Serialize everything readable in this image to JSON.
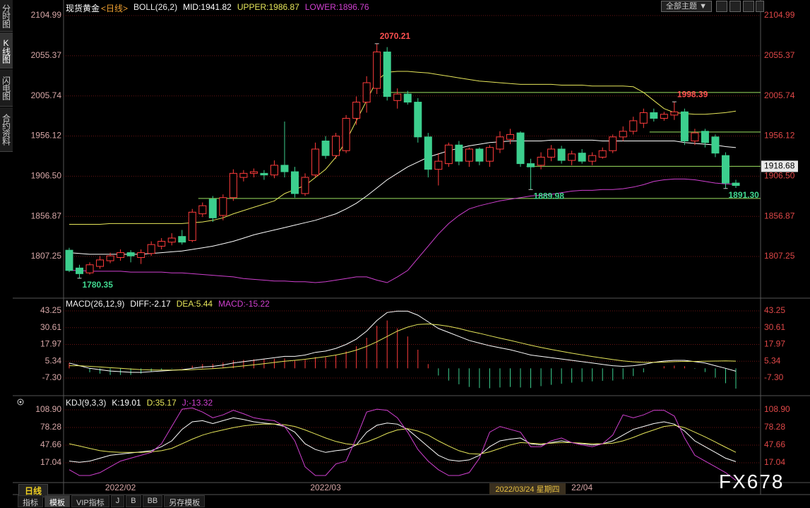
{
  "sidebar": [
    "分时图",
    "K线图",
    "闪电图",
    "合约资料"
  ],
  "toolbar": {
    "dropdown": "全部主题"
  },
  "period_label": "日线",
  "cursor_label": "2022/03/24 星期四",
  "tabs": [
    "指标",
    "模板",
    "VIP指标",
    "J",
    "B",
    "BB",
    "另存模板"
  ],
  "watermark": "FX678",
  "chart_data": [
    {
      "type": "candlestick",
      "title": "现货黄金",
      "period": "<日线>",
      "indicator": "BOLL(26,2)",
      "categories": [
        null,
        null,
        null,
        null,
        null,
        "2022/02",
        null,
        null,
        null,
        null,
        null,
        null,
        null,
        null,
        null,
        null,
        null,
        null,
        null,
        null,
        null,
        null,
        null,
        null,
        null,
        "2022/03",
        null,
        null,
        null,
        null,
        null,
        null,
        null,
        null,
        null,
        null,
        null,
        null,
        null,
        null,
        null,
        null,
        null,
        null,
        null,
        null,
        null,
        null,
        null,
        null,
        "22/04",
        null,
        null,
        null,
        null,
        null,
        null,
        null,
        null,
        null,
        null,
        null,
        null,
        null,
        null,
        null
      ],
      "open": [
        1815,
        1793,
        1787,
        1795,
        1802,
        1806,
        1812,
        1806,
        1811,
        1820,
        1825,
        1832,
        1827,
        1860,
        1878,
        1858,
        1880,
        1905,
        1910,
        1910,
        1908,
        1920,
        1912,
        1885,
        1908,
        1950,
        1932,
        1938,
        1978,
        1998,
        2015,
        2060,
        2000,
        2008,
        1998,
        1955,
        1915,
        1922,
        1945,
        1925,
        1940,
        1925,
        1940,
        1952,
        1960,
        1922,
        1920,
        1930,
        1940,
        1926,
        1935,
        1925,
        1930,
        1938,
        1955,
        1962,
        1972,
        1985,
        1978,
        1982,
        1986,
        1950,
        1962,
        1955,
        1932,
        1898
      ],
      "high": [
        1818,
        1797,
        1800,
        1808,
        1812,
        1816,
        1815,
        1816,
        1826,
        1830,
        1836,
        1840,
        1866,
        1874,
        1882,
        1884,
        1915,
        1914,
        1916,
        1914,
        1926,
        1974,
        1918,
        1910,
        1948,
        1956,
        1960,
        1982,
        2005,
        2030,
        2070.21,
        2066,
        2015,
        2012,
        2003,
        1960,
        1935,
        1948,
        1950,
        1942,
        1942,
        1945,
        1962,
        1965,
        1962,
        1928,
        1936,
        1945,
        1944,
        1938,
        1940,
        1936,
        1942,
        1958,
        1968,
        1980,
        1990,
        1990,
        1986,
        1998.39,
        1990,
        1965,
        1965,
        1958,
        1936,
        1902
      ],
      "low": [
        1788,
        1780.35,
        1785,
        1792,
        1799,
        1802,
        1800,
        1798,
        1808,
        1816,
        1821,
        1822,
        1825,
        1856,
        1850,
        1852,
        1876,
        1900,
        1905,
        1902,
        1904,
        1905,
        1880,
        1882,
        1905,
        1928,
        1928,
        1935,
        1970,
        1985,
        2008,
        2000,
        1990,
        1995,
        1948,
        1905,
        1895,
        1918,
        1920,
        1918,
        1920,
        1918,
        1935,
        1946,
        1918,
        1889.98,
        1915,
        1925,
        1922,
        1920,
        1922,
        1920,
        1928,
        1935,
        1950,
        1958,
        1966,
        1974,
        1975,
        1976,
        1945,
        1945,
        1942,
        1930,
        1891.3,
        1892
      ],
      "close": [
        1790,
        1786,
        1797,
        1803,
        1808,
        1812,
        1808,
        1812,
        1822,
        1826,
        1830,
        1825,
        1862,
        1870,
        1855,
        1880,
        1910,
        1910,
        1912,
        1908,
        1920,
        1912,
        1885,
        1905,
        1940,
        1932,
        1956,
        1978,
        1998,
        2022,
        2060,
        2005,
        2008,
        1998,
        1955,
        1915,
        1925,
        1945,
        1925,
        1940,
        1925,
        1942,
        1955,
        1958,
        1922,
        1918,
        1930,
        1940,
        1926,
        1934,
        1925,
        1932,
        1938,
        1955,
        1962,
        1975,
        1985,
        1978,
        1983,
        1986,
        1950,
        1960,
        1948,
        1935,
        1898,
        1895
      ],
      "high_value_labels": [
        null,
        null,
        null,
        null,
        null,
        null,
        null,
        null,
        null,
        null,
        null,
        null,
        null,
        null,
        null,
        null,
        null,
        null,
        null,
        null,
        null,
        null,
        null,
        null,
        null,
        null,
        null,
        null,
        null,
        null,
        "2070.21",
        null,
        null,
        null,
        null,
        null,
        null,
        null,
        null,
        null,
        null,
        null,
        null,
        null,
        null,
        null,
        null,
        null,
        null,
        null,
        null,
        null,
        null,
        null,
        null,
        null,
        null,
        null,
        null,
        "1998.39",
        null,
        null,
        null,
        null,
        null,
        null
      ],
      "low_value_labels": [
        null,
        "1780.35",
        null,
        null,
        null,
        null,
        null,
        null,
        null,
        null,
        null,
        null,
        null,
        null,
        null,
        null,
        null,
        null,
        null,
        null,
        null,
        null,
        null,
        null,
        null,
        null,
        null,
        null,
        null,
        null,
        null,
        null,
        null,
        null,
        null,
        null,
        null,
        null,
        null,
        null,
        null,
        null,
        null,
        null,
        null,
        "1889.98",
        null,
        null,
        null,
        null,
        null,
        null,
        null,
        null,
        null,
        null,
        null,
        null,
        null,
        null,
        null,
        null,
        null,
        null,
        "1891.30",
        null
      ],
      "up_color": "#ff3c3c",
      "down_color": "#3ccf8e",
      "high_label_color": "#ff5050",
      "low_label_color": "#40d890",
      "series": [
        {
          "name": "MID:1941.82",
          "color": "#ffffff",
          "values": [
            1812,
            1811,
            1810,
            1810,
            1810,
            1810,
            1810,
            1810,
            1811,
            1812,
            1813,
            1814,
            1816,
            1818,
            1820,
            1823,
            1826,
            1830,
            1834,
            1837,
            1840,
            1843,
            1846,
            1849,
            1852,
            1856,
            1860,
            1866,
            1873,
            1882,
            1892,
            1902,
            1910,
            1918,
            1924,
            1930,
            1934,
            1938,
            1941,
            1944,
            1946,
            1948,
            1949,
            1950,
            1950,
            1950,
            1950,
            1951,
            1951,
            1951,
            1951,
            1951,
            1950,
            1950,
            1950,
            1950,
            1950,
            1950,
            1950,
            1950,
            1948,
            1947,
            1946,
            1945,
            1943,
            1941.82
          ]
        },
        {
          "name": "UPPER:1986.87",
          "color": "#e6e65a",
          "values": [
            1847,
            1847,
            1847,
            1847,
            1848,
            1848,
            1848,
            1848,
            1848,
            1848,
            1848,
            1848,
            1849,
            1850,
            1852,
            1855,
            1860,
            1864,
            1868,
            1872,
            1876,
            1885,
            1890,
            1895,
            1905,
            1915,
            1930,
            1950,
            1975,
            2000,
            2025,
            2035,
            2036,
            2036,
            2035,
            2034,
            2032,
            2030,
            2028,
            2026,
            2024,
            2023,
            2022,
            2021,
            2020,
            2020,
            2020,
            2020,
            2019,
            2019,
            2019,
            2018,
            2018,
            2018,
            2018,
            2017,
            2010,
            2000,
            1990,
            1985,
            1984,
            1983,
            1983,
            1984,
            1985,
            1986.87
          ]
        },
        {
          "name": "LOWER:1896.76",
          "color": "#d040d0",
          "values": [
            1790,
            1790,
            1789,
            1789,
            1789,
            1789,
            1788,
            1788,
            1788,
            1788,
            1787,
            1787,
            1786,
            1785,
            1784,
            1783,
            1782,
            1780,
            1779,
            1778,
            1777,
            1777,
            1776,
            1776,
            1775,
            1776,
            1778,
            1780,
            1782,
            1782,
            1778,
            1775,
            1782,
            1790,
            1805,
            1820,
            1835,
            1848,
            1858,
            1866,
            1870,
            1873,
            1876,
            1878,
            1880,
            1882,
            1883,
            1884,
            1886,
            1888,
            1889,
            1889,
            1890,
            1890,
            1891,
            1893,
            1896,
            1900,
            1902,
            1903,
            1903,
            1902,
            1900,
            1898,
            1897,
            1896.76
          ]
        }
      ],
      "hlines": [
        {
          "value": 2010,
          "start": 31
        },
        {
          "value": 1961,
          "start": 57
        },
        {
          "value": 1918.68,
          "start": 45
        },
        {
          "value": 1879,
          "start": 13
        }
      ],
      "hline_color": "#9be060",
      "price_marker": 1918.68,
      "ylim": [
        1757.5,
        2121.6
      ],
      "yticks": [
        2104.99,
        2055.37,
        2005.74,
        1956.12,
        {
          "value": 1906.5,
          "label": "1906.50"
        },
        1856.87,
        1807.25
      ],
      "grid": true
    },
    {
      "type": "macd",
      "indicator": "MACD(26,12,9)",
      "series": [
        {
          "name": "DIFF:-2.17",
          "color": "#ffffff",
          "values": [
            4,
            2,
            0,
            -1,
            -2,
            -2.5,
            -3,
            -3,
            -2.5,
            -2,
            -1.5,
            -1,
            0,
            1,
            1.5,
            2.5,
            4,
            5,
            6,
            7,
            8,
            9,
            9,
            10,
            12,
            13,
            15,
            18,
            22,
            28,
            36,
            42,
            43,
            43,
            40,
            35,
            30,
            27,
            24,
            21,
            19,
            17,
            15.5,
            14,
            12,
            10,
            9,
            8,
            7,
            6,
            5,
            4,
            3,
            2,
            1.5,
            2,
            3,
            4.5,
            5.5,
            6,
            6,
            5,
            4,
            2,
            0,
            -2.17
          ]
        },
        {
          "name": "DEA:5.44",
          "color": "#e6e65a",
          "values": [
            2,
            2,
            1.5,
            1,
            0.5,
            0,
            -0.5,
            -1,
            -1.2,
            -1.3,
            -1.3,
            -1.2,
            -1,
            -0.6,
            -0.2,
            0.3,
            1,
            1.8,
            2.6,
            3.5,
            4.4,
            5.3,
            6,
            6.8,
            7.8,
            8.8,
            10,
            11.6,
            13.7,
            16.5,
            20,
            24,
            28,
            31,
            33,
            33.4,
            32.7,
            31.6,
            30,
            28,
            26.4,
            24.5,
            22.7,
            21,
            19.2,
            17.4,
            15.7,
            14.2,
            12.8,
            11.4,
            10.1,
            8.9,
            7.7,
            6.6,
            5.6,
            4.9,
            4.5,
            4.5,
            4.7,
            5,
            5.2,
            5.2,
            5.4,
            5.5,
            5.6,
            5.44
          ]
        }
      ],
      "histogram": {
        "name": "MACD:-15.22",
        "color": "#d040d0",
        "up_color": "#ff3c3c",
        "down_color": "#3ccf8e",
        "values": [
          4,
          0,
          -3,
          -4,
          -5,
          -5,
          -5,
          -4,
          -2.6,
          -1.4,
          -0.4,
          0.4,
          2,
          3.2,
          3.4,
          4.4,
          6,
          6.4,
          6.8,
          7,
          7.2,
          7.4,
          6,
          6.4,
          8.4,
          8.4,
          10,
          12.8,
          16.6,
          23,
          32,
          36,
          30,
          24,
          14,
          3.2,
          -5.4,
          -9.2,
          -12,
          -14,
          -14.8,
          -15,
          -14.4,
          -14,
          -14.4,
          -14.8,
          -13.4,
          -12.4,
          -11.6,
          -10.8,
          -10.2,
          -9.8,
          -9.4,
          -9.2,
          -8.2,
          -5.8,
          -3,
          0,
          1.6,
          2,
          1.6,
          -0.4,
          -2.8,
          -7,
          -11.2,
          -15.22
        ]
      },
      "ylim": [
        -19.5,
        51.2
      ],
      "yticks": [
        43.25,
        30.61,
        17.97,
        5.34,
        {
          "value": -7.3,
          "label": "-7.30"
        }
      ],
      "grid": true
    },
    {
      "type": "line",
      "indicator": "KDJ(9,3,3)",
      "series": [
        {
          "name": "K:19.01",
          "color": "#ffffff",
          "values": [
            20,
            18,
            20,
            25,
            30,
            32,
            34,
            36,
            38,
            45,
            55,
            75,
            88,
            90,
            85,
            90,
            95,
            92,
            88,
            86,
            84,
            80,
            70,
            50,
            40,
            35,
            38,
            40,
            48,
            70,
            82,
            86,
            84,
            75,
            60,
            45,
            30,
            22,
            20,
            22,
            30,
            45,
            55,
            58,
            60,
            50,
            48,
            52,
            55,
            52,
            50,
            48,
            50,
            55,
            65,
            75,
            80,
            85,
            88,
            84,
            72,
            55,
            45,
            35,
            25,
            19.01
          ]
        },
        {
          "name": "D:35.17",
          "color": "#e6e65a",
          "values": [
            50,
            46,
            42,
            38,
            36,
            35,
            35,
            35,
            36,
            38,
            42,
            50,
            58,
            65,
            70,
            74,
            78,
            81,
            83,
            84,
            84,
            83,
            80,
            74,
            67,
            60,
            54,
            50,
            48,
            53,
            60,
            68,
            74,
            76,
            72,
            65,
            55,
            46,
            38,
            33,
            32,
            36,
            42,
            48,
            52,
            51,
            50,
            51,
            52,
            52,
            51,
            50,
            50,
            51,
            55,
            61,
            68,
            74,
            80,
            82,
            78,
            70,
            62,
            53,
            44,
            35.17
          ]
        },
        {
          "name": "J:-13.32",
          "color": "#d040d0",
          "values": [
            5,
            -5,
            -5,
            0,
            10,
            20,
            25,
            30,
            35,
            50,
            80,
            110,
            112,
            105,
            95,
            100,
            108,
            102,
            95,
            92,
            90,
            80,
            55,
            10,
            -5,
            -5,
            15,
            20,
            60,
            105,
            110,
            108,
            95,
            70,
            40,
            20,
            5,
            -5,
            -5,
            0,
            25,
            70,
            80,
            75,
            70,
            45,
            45,
            55,
            60,
            52,
            48,
            45,
            50,
            65,
            100,
            95,
            100,
            108,
            108,
            98,
            60,
            30,
            20,
            10,
            0,
            -13.32
          ]
        }
      ],
      "ylim": [
        -17.25,
        130.9
      ],
      "yticks": [
        {
          "value": 108.9,
          "label": "108.90"
        },
        78.28,
        47.66,
        17.04
      ],
      "grid": true
    }
  ]
}
